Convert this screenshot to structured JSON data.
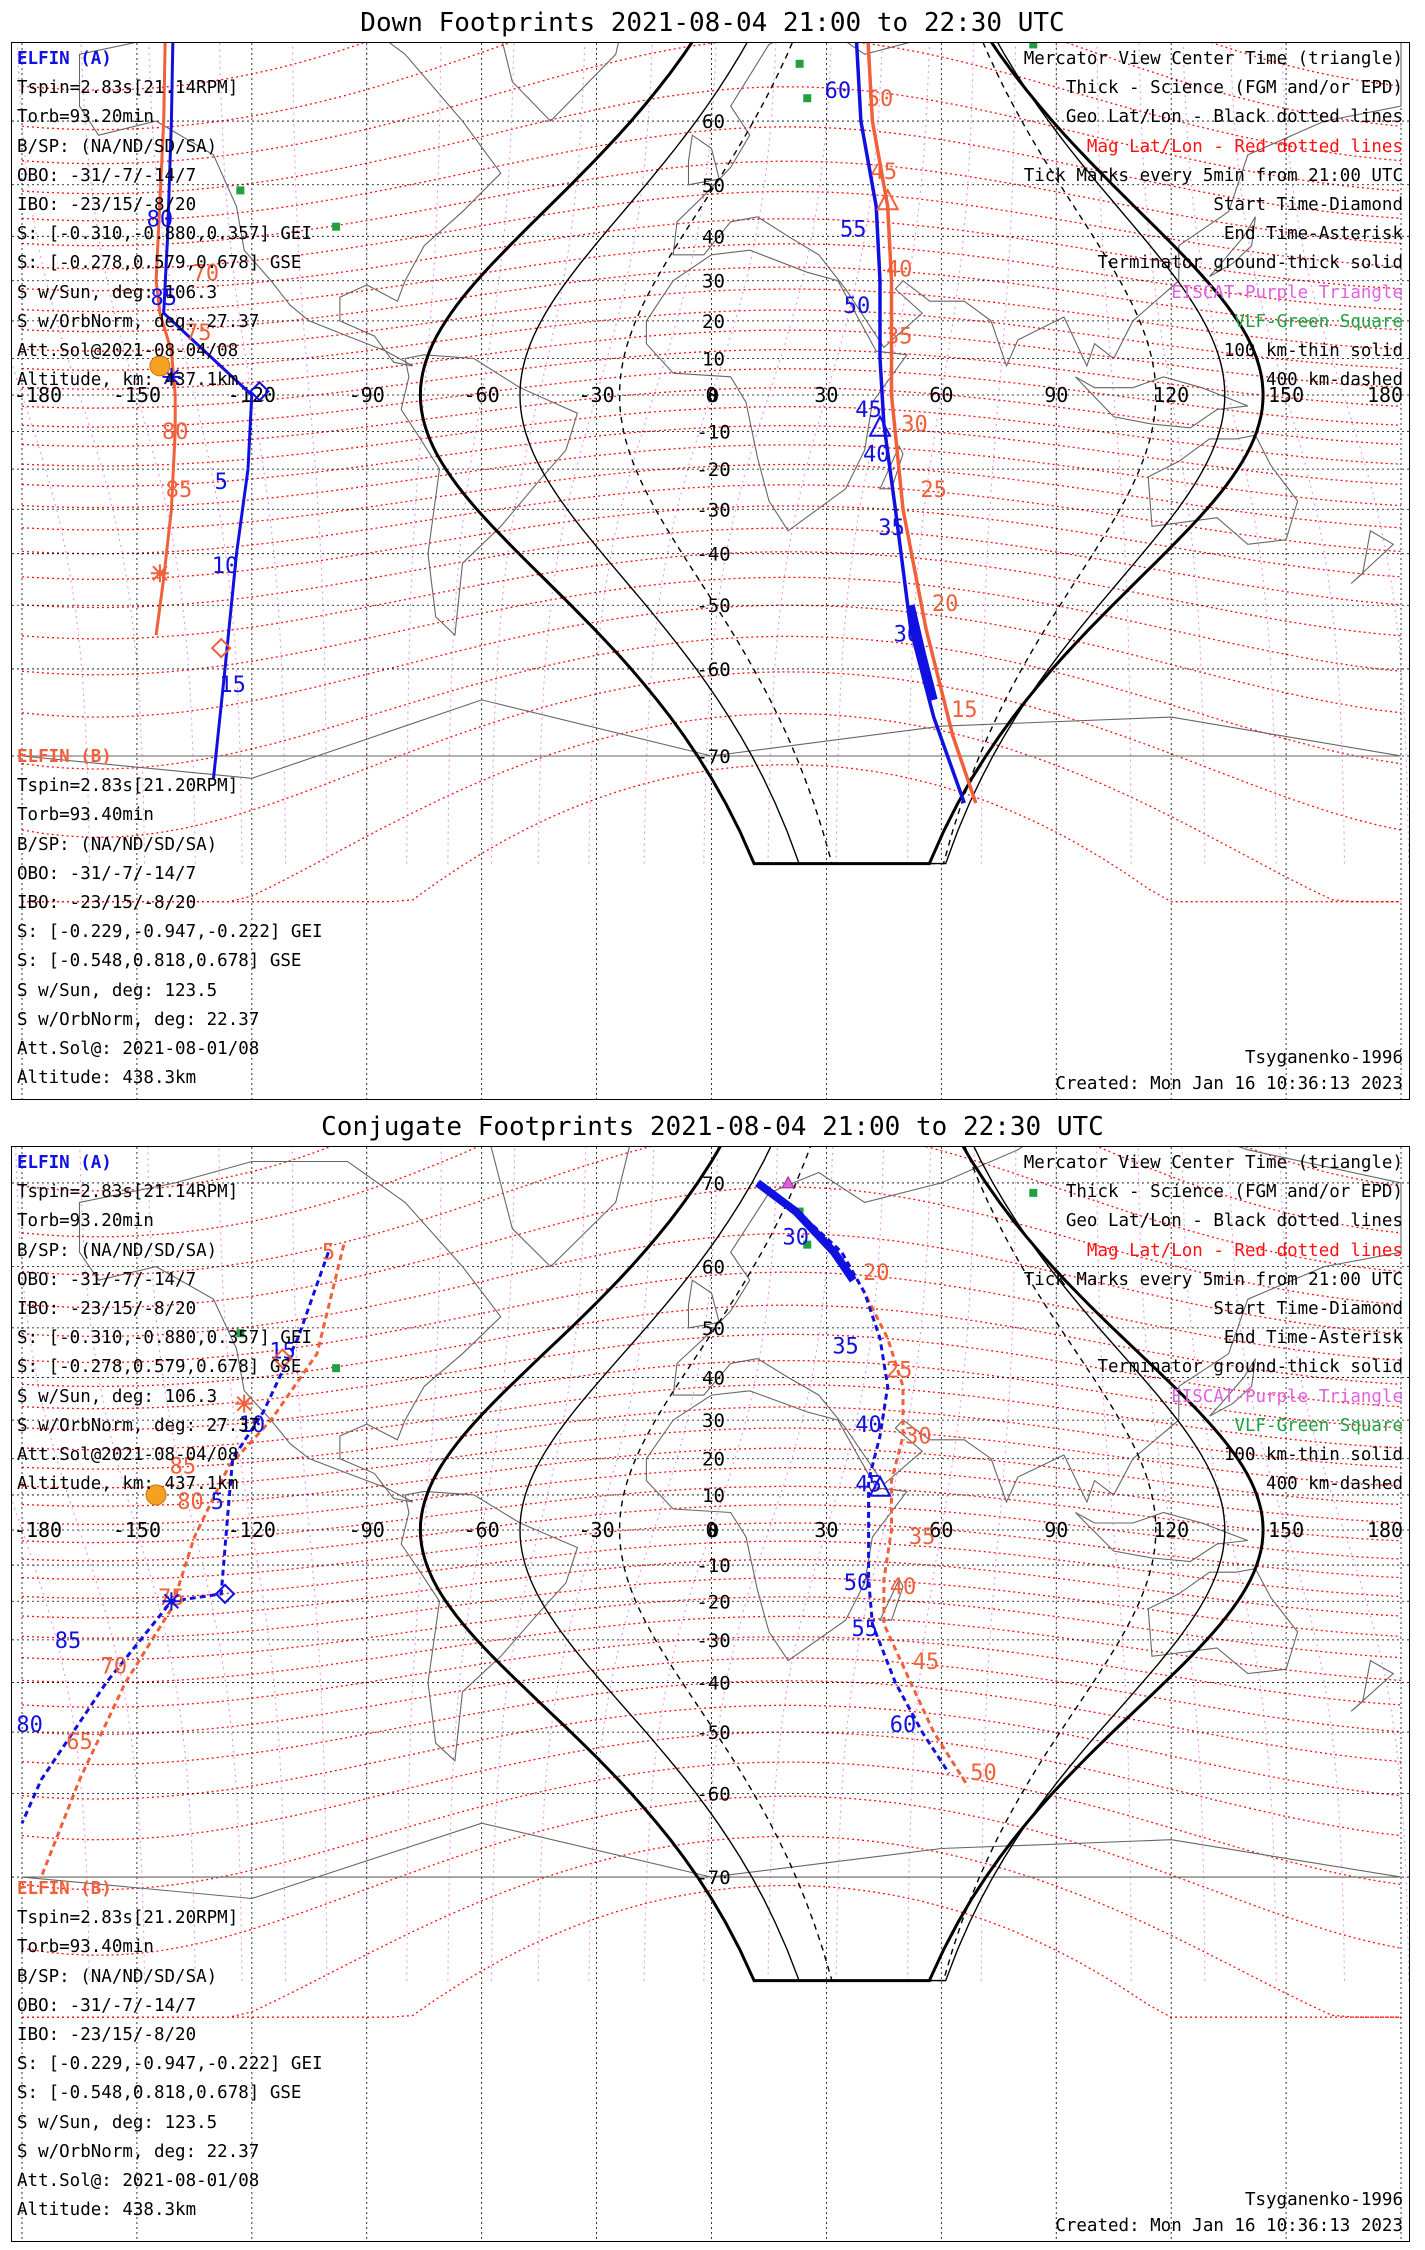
{
  "colors": {
    "elfin_a": "#1010e0",
    "elfin_b": "#f0603a",
    "mag_grid": "#ff1010",
    "geo_grid": "#000000",
    "eiscat": "#e060e0",
    "vlf": "#20a040"
  },
  "panels": [
    {
      "id": "down",
      "title": "Down Footprints 2021-08-04 21:00 to 22:30 UTC",
      "elfin_a": {
        "name": "ELFIN (A)",
        "lines": [
          "Tspin=2.83s[21.14RPM]",
          "Torb=93.20min",
          "B/SP: (NA/ND/SD/SA)",
          "OBO: -31/-7/-14/7",
          "IBO: -23/15/-8/20",
          "S: [-0.310,-0.880,0.357] GEI",
          "S: [-0.278,0.579,0.678] GSE",
          "S w/Sun, deg: 106.3",
          "S w/OrbNorm, deg: 27.37",
          "Att.Sol@2021-08-04/08",
          "Altitude, km: 437.1km"
        ]
      },
      "elfin_b": {
        "name": "ELFIN (B)",
        "lines": [
          "Tspin=2.83s[21.20RPM]",
          "Torb=93.40min",
          "B/SP: (NA/ND/SD/SA)",
          "OBO: -31/-7/-14/7",
          "IBO: -23/15/-8/20",
          "S: [-0.229,-0.947,-0.222] GEI",
          "S: [-0.548,0.818,0.678] GSE",
          "S w/Sun, deg: 123.5",
          "S w/OrbNorm, deg: 22.37",
          "Att.Sol@: 2021-08-01/08",
          "Altitude: 438.3km"
        ]
      },
      "legend": {
        "l1": "Mercator View Center Time (triangle)",
        "l2": "Thick - Science (FGM and/or EPD)",
        "l3": "Geo Lat/Lon - Black dotted lines",
        "l4": "Mag Lat/Lon - Red dotted lines",
        "l5": "Tick Marks every 5min from 21:00 UTC",
        "l6": "Start Time-Diamond",
        "l7": "End Time-Asterisk",
        "l8": "Terminator ground-thick solid",
        "l9": "EISCAT-Purple Triangle",
        "l10": "VLF-Green Square",
        "l11": "100 km-thin solid",
        "l12": "400 km-dashed"
      },
      "footer_left": "Tsyganenko-1996",
      "footer_created": "Created: Mon Jan 16 10:36:13 2023"
    },
    {
      "id": "conjugate",
      "title": "Conjugate Footprints 2021-08-04 21:00 to 22:30 UTC",
      "elfin_a": {
        "name": "ELFIN (A)",
        "lines": [
          "Tspin=2.83s[21.14RPM]",
          "Torb=93.20min",
          "B/SP: (NA/ND/SD/SA)",
          "OBO: -31/-7/-14/7",
          "IBO: -23/15/-8/20",
          "S: [-0.310,-0.880,0.357] GEI",
          "S: [-0.278,0.579,0.678] GSE",
          "S w/Sun, deg: 106.3",
          "S w/OrbNorm, deg: 27.37",
          "Att.Sol@2021-08-04/08",
          "Altitude, km: 437.1km"
        ]
      },
      "elfin_b": {
        "name": "ELFIN (B)",
        "lines": [
          "Tspin=2.83s[21.20RPM]",
          "Torb=93.40min",
          "B/SP: (NA/ND/SD/SA)",
          "OBO: -31/-7/-14/7",
          "IBO: -23/15/-8/20",
          "S: [-0.229,-0.947,-0.222] GEI",
          "S: [-0.548,0.818,0.678] GSE",
          "S w/Sun, deg: 123.5",
          "S w/OrbNorm, deg: 22.37",
          "Att.Sol@: 2021-08-01/08",
          "Altitude: 438.3km"
        ]
      },
      "legend": {
        "l1": "Mercator View Center Time (triangle)",
        "l2": "Thick - Science (FGM and/or EPD)",
        "l3": "Geo Lat/Lon - Black dotted lines",
        "l4": "Mag Lat/Lon - Red dotted lines",
        "l5": "Tick Marks every 5min from 21:00 UTC",
        "l6": "Start Time-Diamond",
        "l7": "End Time-Asterisk",
        "l8": "Terminator ground-thick solid",
        "l9": "EISCAT-Purple Triangle",
        "l10": "VLF-Green Square",
        "l11": "100 km-thin solid",
        "l12": "400 km-dashed"
      },
      "footer_left": "Tsyganenko-1996",
      "footer_created": "Created: Mon Jan 16 10:36:13 2023"
    }
  ],
  "map": {
    "lon_ticks": [
      "-180",
      "-150",
      "-120",
      "-90",
      "-60",
      "-30",
      "0",
      "30",
      "60",
      "90",
      "120",
      "150",
      "180"
    ],
    "lat_ticks_down": [
      "70",
      "60",
      "50",
      "40",
      "30",
      "20",
      "10",
      "0",
      "-10",
      "-20",
      "-30",
      "-40",
      "-50",
      "-60",
      "-70"
    ],
    "lat_ticks_conj": [
      "70",
      "60",
      "50",
      "40",
      "30",
      "20",
      "10",
      "0",
      "-10",
      "-20",
      "-30",
      "-40",
      "-50",
      "-60",
      "-70"
    ]
  },
  "tracks": {
    "down_a": {
      "points": [
        [
          -141,
          82
        ],
        [
          -142,
          40
        ],
        [
          -141,
          15
        ],
        [
          -120,
          0
        ],
        [
          -126,
          -35
        ],
        [
          -131,
          -72
        ]
      ],
      "ticks": [
        {
          "t": "65",
          "at": [
            32,
            77
          ]
        },
        {
          "t": "60",
          "at": [
            33,
            63
          ]
        },
        {
          "t": "55",
          "at": [
            37,
            40
          ]
        },
        {
          "t": "50",
          "at": [
            38,
            22
          ]
        },
        {
          "t": "45",
          "at": [
            41,
            -6
          ]
        },
        {
          "t": "40",
          "at": [
            43,
            -18
          ]
        },
        {
          "t": "35",
          "at": [
            47,
            -36
          ]
        },
        {
          "t": "30",
          "at": [
            51,
            -56
          ]
        },
        {
          "t": "5",
          "at": [
            -128,
            -25
          ]
        },
        {
          "t": "10",
          "at": [
            -127,
            -44
          ]
        },
        {
          "t": "15",
          "at": [
            -125,
            -63
          ]
        },
        {
          "t": "75",
          "at": [
            -140,
            72
          ]
        },
        {
          "t": "80",
          "at": [
            -144,
            42
          ]
        },
        {
          "t": "85",
          "at": [
            -143,
            24
          ]
        }
      ]
    },
    "down_b": {
      "ticks": [
        {
          "t": "50",
          "at": [
            44,
            62
          ]
        },
        {
          "t": "45",
          "at": [
            45,
            51
          ]
        },
        {
          "t": "40",
          "at": [
            49,
            31
          ]
        },
        {
          "t": "35",
          "at": [
            49,
            14
          ]
        },
        {
          "t": "30",
          "at": [
            53,
            -10
          ]
        },
        {
          "t": "25",
          "at": [
            58,
            -27
          ]
        },
        {
          "t": "20",
          "at": [
            61,
            -51
          ]
        },
        {
          "t": "15",
          "at": [
            66,
            -66
          ]
        },
        {
          "t": "70",
          "at": [
            -132,
            30
          ]
        },
        {
          "t": "75",
          "at": [
            -134,
            15
          ]
        },
        {
          "t": "80",
          "at": [
            -140,
            -12
          ]
        },
        {
          "t": "85",
          "at": [
            -139,
            -27
          ]
        }
      ]
    },
    "conj_a": {
      "ticks": [
        {
          "t": "30",
          "at": [
            22,
            63
          ]
        },
        {
          "t": "35",
          "at": [
            35,
            45
          ]
        },
        {
          "t": "40",
          "at": [
            41,
            27
          ]
        },
        {
          "t": "45",
          "at": [
            41,
            11
          ]
        },
        {
          "t": "50",
          "at": [
            38,
            -17
          ]
        },
        {
          "t": "55",
          "at": [
            40,
            -29
          ]
        },
        {
          "t": "60",
          "at": [
            50,
            -50
          ]
        },
        {
          "t": "15",
          "at": [
            -112,
            44
          ]
        },
        {
          "t": "10",
          "at": [
            -120,
            27
          ]
        },
        {
          "t": "5",
          "at": [
            -129,
            6
          ]
        },
        {
          "t": "85",
          "at": [
            -168,
            -32
          ]
        },
        {
          "t": "80",
          "at": [
            -178,
            -50
          ]
        }
      ]
    },
    "conj_b": {
      "ticks": [
        {
          "t": "20",
          "at": [
            43,
            58
          ]
        },
        {
          "t": "25",
          "at": [
            49,
            40
          ]
        },
        {
          "t": "30",
          "at": [
            54,
            24
          ]
        },
        {
          "t": "35",
          "at": [
            55,
            -4
          ]
        },
        {
          "t": "40",
          "at": [
            50,
            -18
          ]
        },
        {
          "t": "45",
          "at": [
            56,
            -37
          ]
        },
        {
          "t": "50",
          "at": [
            71,
            -58
          ]
        },
        {
          "t": "5",
          "at": [
            -100,
            61
          ]
        },
        {
          "t": "85",
          "at": [
            -138,
            16
          ]
        },
        {
          "t": "80",
          "at": [
            -136,
            6
          ]
        },
        {
          "t": "75",
          "at": [
            -141,
            -21
          ]
        },
        {
          "t": "70",
          "at": [
            -156,
            -38
          ]
        },
        {
          "t": "65",
          "at": [
            -165,
            -53
          ]
        }
      ]
    }
  }
}
